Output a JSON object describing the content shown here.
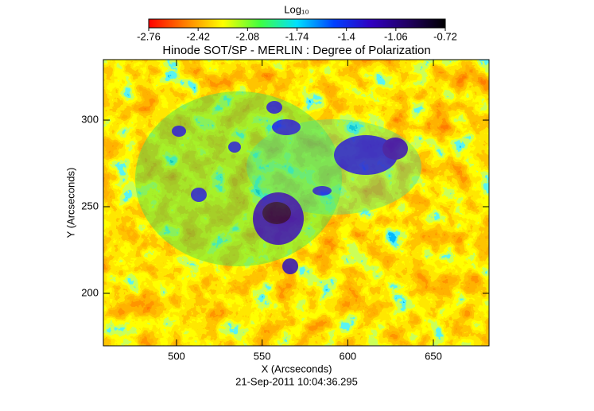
{
  "chart_data": {
    "type": "heatmap",
    "title": "Hinode SOT/SP - MERLIN : Degree of Polarization",
    "xlabel": "X (Arcseconds)",
    "ylabel": "Y (Arcseconds)",
    "footer": "21-Sep-2011 10:04:36.295",
    "xlim": [
      457.3,
      682.5
    ],
    "ylim": [
      169.7,
      334.9
    ],
    "xticks": [
      500,
      550,
      600,
      650
    ],
    "yticks": [
      200,
      250,
      300
    ],
    "colorbar": {
      "label": "Log₁₀",
      "lim": [
        -2.76,
        -0.72
      ],
      "ticks": [
        -2.76,
        -2.42,
        -2.08,
        -1.74,
        -1.4,
        -1.06,
        -0.72
      ],
      "colors": [
        "#ff0000",
        "#ff8000",
        "#ffff00",
        "#40ff40",
        "#00e0ff",
        "#0040ff",
        "#3000c0",
        "#200060",
        "#000000"
      ]
    }
  }
}
